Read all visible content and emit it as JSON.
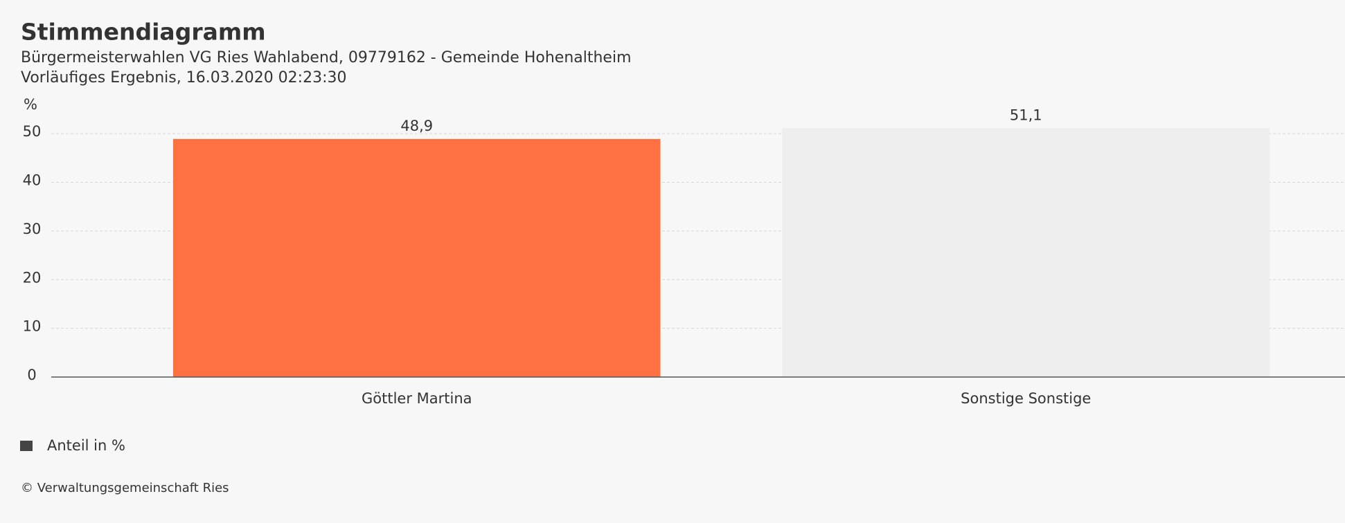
{
  "chart_data": {
    "type": "bar",
    "title": "Stimmendiagramm",
    "subtitle": [
      "Bürgermeisterwahlen VG Ries Wahlabend, 09779162 - Gemeinde Hohenaltheim",
      "Vorläufiges Ergebnis, 16.03.2020 02:23:30"
    ],
    "y_label": "%",
    "categories": [
      "Göttler Martina",
      "Sonstige Sonstige"
    ],
    "series": [
      {
        "name": "Anteil in %",
        "color": "#444444",
        "bar_colors": [
          "#ff7043",
          "#eeeeee"
        ],
        "values": [
          48.9,
          51.1
        ],
        "value_labels": [
          "48,9",
          "51,1"
        ]
      }
    ],
    "ylim": [
      0,
      55
    ],
    "yticks": [
      0,
      10,
      20,
      30,
      40,
      50
    ],
    "grid": true,
    "legend": "bottom-left",
    "credit": "© Verwaltungsgemeinschaft Ries"
  }
}
